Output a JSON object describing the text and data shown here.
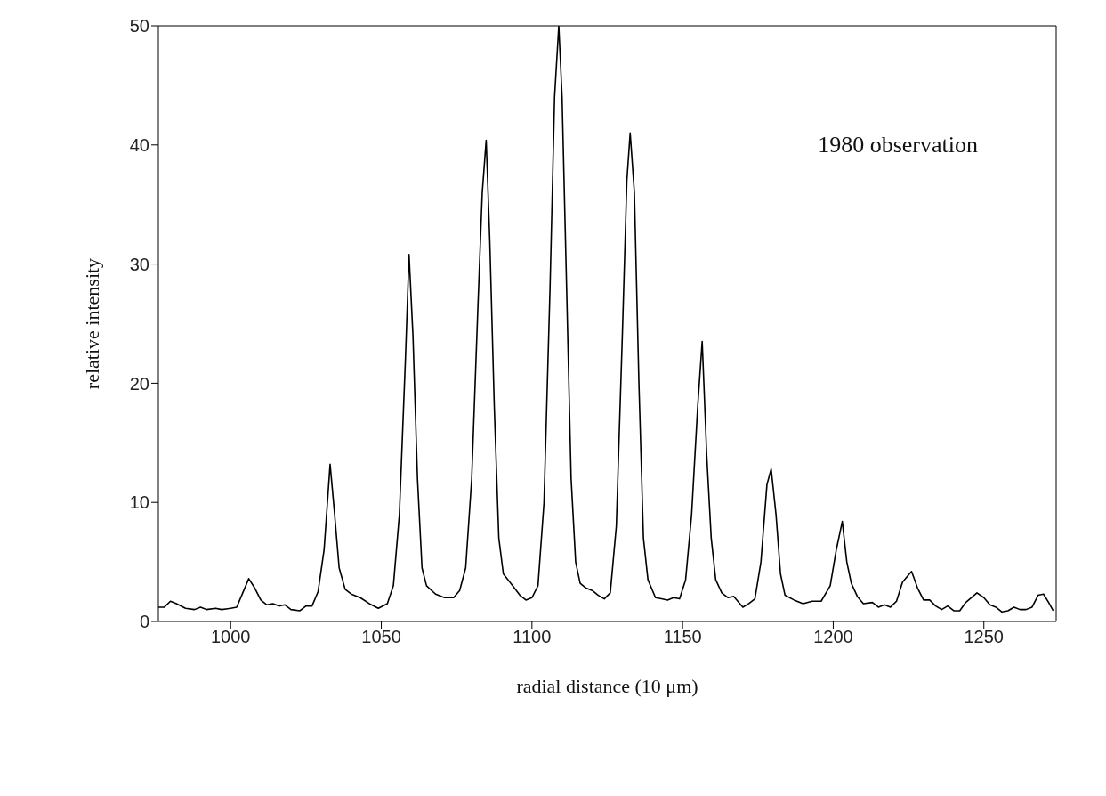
{
  "chart_data": {
    "type": "line",
    "xlabel": "radial distance (10 μm)",
    "ylabel": "relative intensity",
    "annotations": [
      "1980 observation"
    ],
    "xlim": [
      976,
      1274
    ],
    "xticks": [
      1000,
      1050,
      1100,
      1150,
      1200,
      1250
    ],
    "ylim": [
      0,
      50
    ],
    "yticks": [
      0,
      10,
      20,
      30,
      40,
      50
    ],
    "grid": false,
    "legend": false,
    "marker": "none",
    "line_style": "solid",
    "series": [
      {
        "color": "#000000",
        "x": [
          976,
          978,
          980,
          982,
          985,
          988,
          990,
          992,
          995,
          997,
          1000,
          1002,
          1004,
          1006,
          1008,
          1010,
          1012,
          1014,
          1016,
          1018,
          1020,
          1023,
          1025,
          1027,
          1029,
          1031,
          1033,
          1034.5,
          1036,
          1038,
          1040,
          1043,
          1046,
          1049,
          1052,
          1054,
          1056,
          1058,
          1059.2,
          1060.5,
          1062,
          1063.5,
          1065,
          1068,
          1071,
          1074,
          1076,
          1078,
          1080,
          1082,
          1083.5,
          1084.8,
          1086,
          1087.5,
          1089,
          1090.5,
          1093,
          1096,
          1098,
          1100,
          1102,
          1104,
          1106,
          1107.5,
          1108.9,
          1110,
          1111.5,
          1113,
          1114.5,
          1116,
          1118,
          1120,
          1122,
          1124,
          1126,
          1128,
          1130,
          1131.5,
          1132.6,
          1134,
          1135.5,
          1137,
          1138.5,
          1141,
          1143,
          1145,
          1147,
          1149,
          1151,
          1153,
          1155,
          1156.5,
          1158,
          1159.5,
          1161,
          1163,
          1165,
          1167,
          1170,
          1172,
          1174,
          1176,
          1178,
          1179.4,
          1181,
          1182.5,
          1184,
          1187,
          1190,
          1193,
          1196,
          1199,
          1201,
          1203,
          1204.5,
          1206,
          1208,
          1210,
          1213,
          1215,
          1217,
          1219,
          1221,
          1223,
          1226,
          1228,
          1230,
          1232,
          1234,
          1236,
          1238,
          1240,
          1242,
          1244,
          1247.7,
          1250,
          1252,
          1254,
          1256,
          1258,
          1260,
          1262,
          1264,
          1266,
          1268,
          1269.8,
          1271.5,
          1273
        ],
        "values": [
          1.2,
          1.2,
          1.7,
          1.5,
          1.1,
          1.0,
          1.2,
          1.0,
          1.1,
          1.0,
          1.1,
          1.2,
          2.4,
          3.6,
          2.8,
          1.8,
          1.4,
          1.5,
          1.3,
          1.4,
          1.0,
          0.9,
          1.3,
          1.3,
          2.5,
          6,
          13.2,
          9,
          4.5,
          2.7,
          2.3,
          2.0,
          1.5,
          1.1,
          1.5,
          3,
          9,
          22,
          30.8,
          24,
          12,
          4.5,
          3.0,
          2.3,
          2.0,
          2.0,
          2.6,
          4.5,
          12,
          26,
          36,
          40.4,
          32,
          18,
          7,
          4,
          3.2,
          2.2,
          1.8,
          2.0,
          3.0,
          10,
          28,
          44,
          50,
          44,
          28,
          12,
          5,
          3.2,
          2.8,
          2.6,
          2.2,
          1.9,
          2.4,
          8,
          24,
          37,
          41.0,
          36,
          20,
          7,
          3.5,
          2.0,
          1.9,
          1.8,
          2.0,
          1.9,
          3.5,
          9,
          18,
          23.5,
          14,
          7,
          3.5,
          2.4,
          2.0,
          2.1,
          1.2,
          1.5,
          1.9,
          5,
          11.5,
          12.8,
          9,
          4,
          2.2,
          1.8,
          1.5,
          1.7,
          1.7,
          3,
          6,
          8.4,
          5,
          3.2,
          2.1,
          1.5,
          1.6,
          1.2,
          1.4,
          1.2,
          1.7,
          3.3,
          4.2,
          2.8,
          1.8,
          1.8,
          1.3,
          1.0,
          1.3,
          0.9,
          0.9,
          1.6,
          2.4,
          2.0,
          1.4,
          1.2,
          0.8,
          0.9,
          1.2,
          1.0,
          1.0,
          1.2,
          2.2,
          2.3,
          1.6,
          0.9
        ]
      }
    ]
  }
}
